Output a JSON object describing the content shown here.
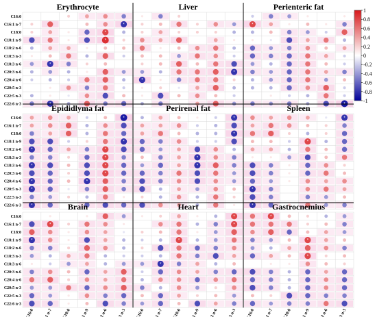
{
  "chart_data": {
    "type": "heatmap",
    "subtype": "correlation-dot-matrix",
    "panels": [
      {
        "title": "Erythrocyte",
        "values": [
          [
            0,
            0,
            0.2,
            0.4,
            0.5,
            -0.5
          ],
          [
            0.2,
            0.7,
            0,
            0.3,
            0.5,
            -0.8
          ],
          [
            0.2,
            0.4,
            0.1,
            -0.6,
            0.8,
            -0.3
          ],
          [
            -0.7,
            0.6,
            0.1,
            -0.7,
            0.9,
            0.2
          ],
          [
            -0.3,
            0.4,
            0.4,
            0.1,
            0.3,
            0.3
          ],
          [
            0.1,
            0.3,
            0.6,
            -0.3,
            0.7,
            -0.2
          ],
          [
            -0.4,
            -0.8,
            -0.5,
            0.2,
            0.3,
            0
          ],
          [
            -0.3,
            -0.4,
            -0.3,
            0.1,
            0.7,
            -0.4
          ],
          [
            -0.2,
            -0.3,
            -0.2,
            0.6,
            0.7,
            -0.3
          ],
          [
            0,
            0.1,
            0.5,
            -0.5,
            0.6,
            -0.2
          ],
          [
            -0.3,
            0.1,
            -0.1,
            0.5,
            -0.7,
            0.3
          ],
          [
            -0.5,
            -0.8,
            -0.3,
            0.7,
            -0.5,
            -0.6
          ]
        ]
      },
      {
        "title": "Liver",
        "values": [
          [
            0.1,
            -0.5,
            0.2,
            0,
            0,
            0
          ],
          [
            0.2,
            0.3,
            0.6,
            0.2,
            0.5,
            -0.4
          ],
          [
            0.2,
            0.4,
            0.2,
            0.2,
            0.2,
            -0.3
          ],
          [
            0.5,
            0.4,
            0.7,
            0,
            0.4,
            0.1
          ],
          [
            0.6,
            0.1,
            0.3,
            0.5,
            0.6,
            -0.3
          ],
          [
            0.3,
            0.3,
            -0.4,
            0.6,
            0.5,
            -0.2
          ],
          [
            0.2,
            0.3,
            0.7,
            0.3,
            0.6,
            -0.7
          ],
          [
            -0.4,
            -0.3,
            0.6,
            0.6,
            0.7,
            -0.8
          ],
          [
            -0.8,
            0.1,
            -0.5,
            0.6,
            0.6,
            0.2
          ],
          [
            0.1,
            0.2,
            -0.1,
            0.4,
            0.7,
            -0.3
          ],
          [
            0.1,
            -0.7,
            0.3,
            0.5,
            0.3,
            -0.2
          ],
          [
            -0.3,
            -0.5,
            0.1,
            0.4,
            0.7,
            -0.4
          ]
        ]
      },
      {
        "title": "Perienteric fat",
        "values": [
          [
            -0.2,
            -0.5,
            -0.4,
            0.1,
            0,
            0.1
          ],
          [
            0.8,
            0.4,
            0.1,
            0.3,
            0.1,
            -0.5
          ],
          [
            -0.3,
            0.3,
            -0.5,
            -0.4,
            -0.2,
            0.7
          ],
          [
            0.1,
            -0.1,
            -0.7,
            0.4,
            0.6,
            -0.3
          ],
          [
            -0.6,
            -0.4,
            -0.5,
            0.5,
            0.3,
            0.4
          ],
          [
            -0.6,
            -0.5,
            -0.6,
            0.6,
            0.4,
            -0.2
          ],
          [
            -0.4,
            -0.3,
            -0.6,
            0.6,
            0.3,
            -0.2
          ],
          [
            -0.5,
            -0.4,
            -0.6,
            0.6,
            0.4,
            -0.5
          ],
          [
            -0.3,
            -0.4,
            -0.6,
            0.6,
            -0.4,
            0.3
          ],
          [
            -0.3,
            -0.3,
            -0.6,
            0.5,
            0.7,
            -0.2
          ],
          [
            0,
            0.1,
            -0.2,
            -0.3,
            0.6,
            -0.2
          ],
          [
            -0.5,
            -0.4,
            -0.5,
            -0.3,
            -0.7,
            -0.9
          ]
        ]
      },
      {
        "title": "Epididlyma fat",
        "values": [
          [
            0.4,
            0.5,
            0.4,
            -0.2,
            0.3,
            -0.9
          ],
          [
            0.4,
            0.5,
            0.7,
            -0.3,
            0.5,
            -0.7
          ],
          [
            -0.5,
            0.4,
            0.7,
            -0.3,
            0.6,
            -0.6
          ],
          [
            -0.7,
            -0.7,
            -0.2,
            0.2,
            0.6,
            -0.8
          ],
          [
            -0.8,
            -0.6,
            0.4,
            -0.5,
            0.8,
            -0.7
          ],
          [
            -0.5,
            -0.5,
            0.2,
            -0.6,
            0.8,
            -0.5
          ],
          [
            -0.8,
            -0.7,
            0.3,
            -0.7,
            0.8,
            -0.6
          ],
          [
            -0.7,
            -0.6,
            0.2,
            -0.7,
            0.8,
            -0.6
          ],
          [
            -0.8,
            -0.6,
            0.3,
            -0.8,
            0.7,
            -0.5
          ],
          [
            -0.8,
            -0.6,
            -0.1,
            -0.5,
            0.7,
            -0.5
          ],
          [
            -0.5,
            -0.4,
            0.2,
            -0.3,
            0.6,
            0.1
          ],
          [
            -0.8,
            -0.6,
            0.1,
            -0.6,
            -0.7,
            -0.6
          ]
        ]
      },
      {
        "title": "Perirenal fat",
        "values": [
          [
            -0.3,
            0.4,
            0.3,
            0.1,
            -0.2,
            -0.8
          ],
          [
            0.4,
            0.4,
            0.5,
            -0.2,
            -0.3,
            -0.7
          ],
          [
            0.4,
            0.6,
            0.3,
            -0.3,
            -0.3,
            -0.8
          ],
          [
            -0.6,
            -0.5,
            0.5,
            -0.2,
            -0.2,
            -0.7
          ],
          [
            -0.6,
            -0.4,
            0.4,
            -0.7,
            0.5,
            -0.3
          ],
          [
            0.3,
            -0.5,
            0.4,
            -0.8,
            0.5,
            -0.5
          ],
          [
            -0.4,
            -0.6,
            0.4,
            -0.8,
            0.7,
            -0.5
          ],
          [
            -0.6,
            -0.5,
            0.6,
            -0.7,
            0.6,
            -0.4
          ],
          [
            -0.7,
            -0.5,
            0.5,
            -0.7,
            0.5,
            -0.4
          ],
          [
            -0.7,
            -0.3,
            0.4,
            -0.4,
            0.5,
            0.3
          ],
          [
            0.2,
            -0.3,
            0.5,
            -0.3,
            0.6,
            0.2
          ],
          [
            -0.7,
            0.5,
            0.4,
            -0.3,
            0.6,
            0.1
          ]
        ]
      },
      {
        "title": "Spleen",
        "values": [
          [
            0.5,
            0.4,
            0.5,
            0.4,
            -0.1,
            -0.8
          ],
          [
            0.4,
            0.6,
            0.5,
            0.3,
            0.2,
            -0.5
          ],
          [
            0.6,
            0.7,
            0.2,
            -0.3,
            0.2,
            -0.6
          ],
          [
            0.3,
            0.3,
            -0.2,
            0.8,
            -0.3,
            -0.6
          ],
          [
            0.4,
            0.4,
            -0.3,
            0.6,
            0.3,
            -0.6
          ],
          [
            0.1,
            0.1,
            -0.4,
            -0.7,
            0.3,
            0.6
          ],
          [
            -0.7,
            -0.5,
            0.1,
            -0.6,
            0.5,
            0.2
          ],
          [
            -0.7,
            -0.5,
            0.1,
            -0.6,
            0.6,
            0.3
          ],
          [
            -0.6,
            -0.4,
            0.1,
            0.5,
            0.4,
            0.5
          ],
          [
            -0.8,
            -0.5,
            0,
            0.5,
            0.6,
            0.4
          ],
          [
            -0.7,
            -0.5,
            0,
            -0.5,
            -0.4,
            0.3
          ],
          [
            -0.8,
            -0.6,
            0.2,
            0.6,
            -0.4,
            -0.5
          ]
        ]
      },
      {
        "title": "Brain",
        "values": [
          [
            0,
            0.1,
            0,
            0.1,
            0.7,
            -0.4
          ],
          [
            -0.7,
            0.8,
            0.2,
            0.6,
            0.5,
            0.1
          ],
          [
            0.7,
            0.5,
            0.1,
            0.5,
            0.4,
            -0.1
          ],
          [
            -0.8,
            0.5,
            0.1,
            -0.7,
            0.4,
            -0.3
          ],
          [
            -0.5,
            -0.5,
            0.2,
            0.7,
            0.5,
            -0.3
          ],
          [
            -0.4,
            -0.3,
            0.4,
            0.6,
            -0.3,
            -0.2
          ],
          [
            0.1,
            -0.2,
            -0.4,
            0.4,
            -0.3,
            -0.4
          ],
          [
            -0.5,
            0.5,
            0.3,
            -0.6,
            0.4,
            0.7
          ],
          [
            0.6,
            0.7,
            0.2,
            0.5,
            0.4,
            0.6
          ],
          [
            -0.4,
            -0.4,
            0.6,
            -0.6,
            0.5,
            0.7
          ],
          [
            -0.6,
            -0.4,
            0.1,
            0.5,
            -0.5,
            -0.6
          ],
          [
            -0.7,
            -0.6,
            0.1,
            0.3,
            -0.7,
            -0.5
          ]
        ]
      },
      {
        "title": "Heart",
        "values": [
          [
            0.1,
            0.2,
            0.4,
            0.1,
            -0.3,
            0.8
          ],
          [
            0,
            0.5,
            0.6,
            -0.3,
            -0.5,
            0.8
          ],
          [
            0.2,
            0.3,
            0.6,
            0.1,
            -0.4,
            0.7
          ],
          [
            -0.2,
            -0.3,
            0.8,
            -0.3,
            -0.4,
            0.6
          ],
          [
            0.2,
            -0.7,
            0.6,
            -0.6,
            -0.5,
            0.5
          ],
          [
            -0.2,
            -0.3,
            0.6,
            -0.5,
            -0.7,
            0.4
          ],
          [
            -0.4,
            -0.8,
            -0.5,
            0.4,
            -0.3,
            0.3
          ],
          [
            -0.2,
            -0.6,
            0.5,
            0.4,
            -0.5,
            -0.6
          ],
          [
            -0.3,
            0.5,
            0.5,
            -0.6,
            0.5,
            0.6
          ],
          [
            -0.5,
            -0.3,
            0.5,
            -0.4,
            0.2,
            0.5
          ],
          [
            0.3,
            -0.6,
            0.4,
            0.2,
            0.3,
            -0.4
          ],
          [
            -0.4,
            -0.6,
            0.3,
            -0.7,
            0.4,
            -0.5
          ]
        ]
      },
      {
        "title": "Gastrocnemius",
        "values": [
          [
            0.6,
            0.8,
            0.3,
            0.2,
            -0.3,
            -0.4
          ],
          [
            0.6,
            0.6,
            0.6,
            0.2,
            0.3,
            -0.5
          ],
          [
            0.5,
            0.7,
            -0.6,
            0.3,
            0.4,
            -0.4
          ],
          [
            -0.5,
            -0.4,
            0.3,
            0.8,
            0.4,
            0.3
          ],
          [
            -0.4,
            -0.3,
            0.4,
            0.7,
            0.5,
            -0.5
          ],
          [
            -0.6,
            0.4,
            0.3,
            0.8,
            0.2,
            0.3
          ],
          [
            0,
            0.1,
            0.1,
            0.5,
            0.3,
            0.2
          ],
          [
            -0.7,
            -0.5,
            -0.3,
            -0.6,
            0.4,
            -0.6
          ],
          [
            -0.6,
            -0.5,
            -0.3,
            -0.6,
            0.5,
            -0.6
          ],
          [
            -0.7,
            -0.5,
            -0.3,
            -0.6,
            0.5,
            -0.6
          ],
          [
            0.3,
            0.2,
            -0.7,
            -0.6,
            -0.5,
            -0.5
          ],
          [
            -0.6,
            -0.4,
            -0.5,
            -0.5,
            0.6,
            -0.7
          ]
        ]
      }
    ],
    "row_labels": [
      "C16:0",
      "C16:1 n-7",
      "C18:0",
      "C18:1 n-9",
      "C18:2 n-6",
      "C18:3 n-3",
      "C18:3 n-6",
      "C20:3 n-6",
      "C20:4 n-6",
      "C20:5 n-3",
      "C22:5 n-3",
      "C22:6 n-3"
    ],
    "col_labels": [
      "C16:0",
      "C16:1 n-7",
      "C18:0",
      "C18:1 n-9",
      "C18:2 n-6",
      "C18:3 n-3"
    ],
    "colorbar": {
      "ticks": [
        "1",
        "0.8",
        "0.6",
        "0.4",
        "0.2",
        "0",
        "-0.2",
        "-0.4",
        "-0.6",
        "-0.8",
        "-1"
      ],
      "range": [
        -1,
        1
      ],
      "pos_color": "#d7191c",
      "neg_color": "#000099",
      "mid_color": "#ffffff"
    },
    "grid": true,
    "legend_placement": "right"
  }
}
